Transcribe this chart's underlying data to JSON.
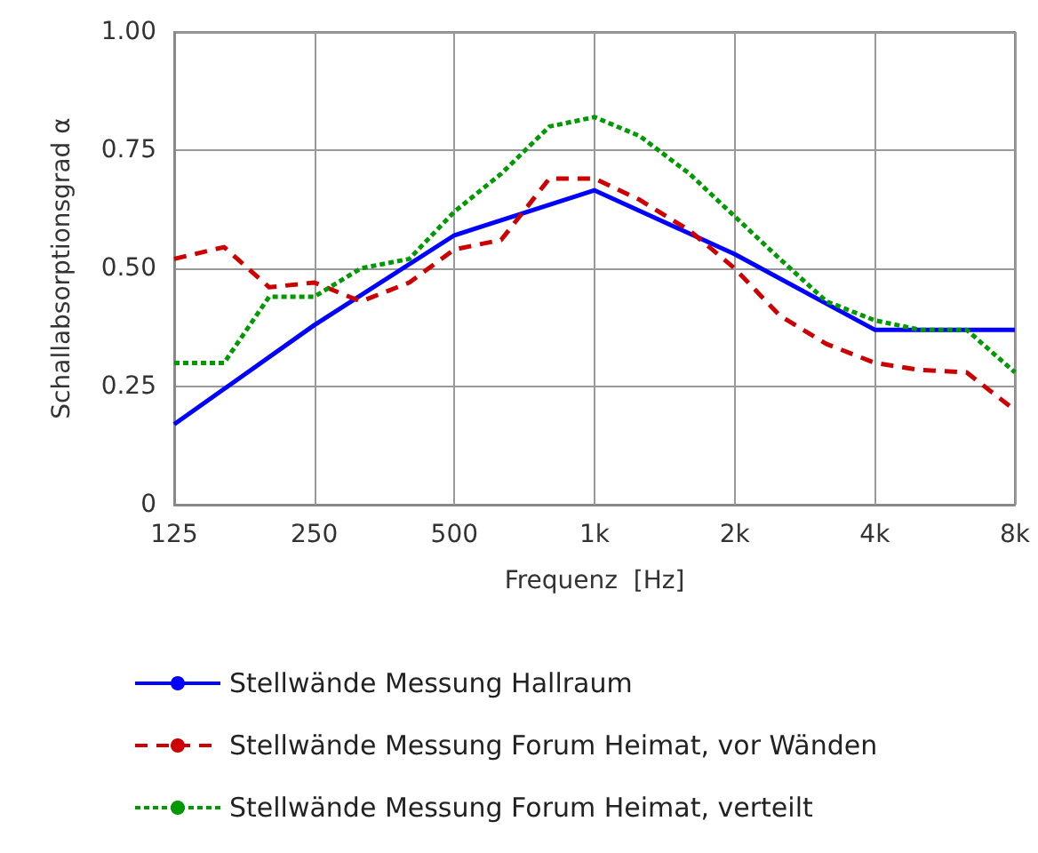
{
  "chart_data": {
    "type": "line",
    "xlabel": "Frequenz  [Hz]",
    "ylabel": "Schallabsorptionsgrad α",
    "log": "x",
    "grid": true,
    "legend": "bottom",
    "marker": "none",
    "xlim": [
      125,
      8000
    ],
    "xticks": [
      125,
      250,
      500,
      {
        "value": 1000,
        "label": "1k"
      },
      {
        "value": 2000,
        "label": "2k"
      },
      {
        "value": 4000,
        "label": "4k"
      },
      {
        "value": 8000,
        "label": "8k"
      }
    ],
    "ylim": [
      0,
      1
    ],
    "yticks": [
      0,
      {
        "value": 0.25,
        "label": "0.25"
      },
      {
        "value": 0.5,
        "label": "0.50"
      },
      {
        "value": 0.75,
        "label": "0.75"
      },
      {
        "value": 1,
        "label": "1.00"
      }
    ],
    "series": [
      {
        "name": "Stellwände Messung Hallraum",
        "color": "#0000ff",
        "line_style": "solid",
        "x": [
          125,
          250,
          500,
          1000,
          2000,
          4000,
          8000
        ],
        "values": [
          0.17,
          0.38,
          0.57,
          0.665,
          0.53,
          0.37,
          0.37
        ]
      },
      {
        "name": "Stellwände Messung Forum Heimat, vor Wänden",
        "color": "#cc0000",
        "line_style": "dashed",
        "x": [
          125,
          160,
          200,
          250,
          315,
          400,
          500,
          630,
          800,
          1000,
          1250,
          1600,
          2000,
          2500,
          3150,
          4000,
          5000,
          6300,
          8000
        ],
        "values": [
          0.52,
          0.545,
          0.46,
          0.47,
          0.43,
          0.47,
          0.54,
          0.56,
          0.69,
          0.69,
          0.645,
          0.58,
          0.5,
          0.4,
          0.34,
          0.3,
          0.285,
          0.28,
          0.2
        ]
      },
      {
        "name": "Stellwände Messung Forum Heimat, verteilt",
        "color": "#009900",
        "line_style": "dotted",
        "x": [
          125,
          160,
          200,
          250,
          315,
          400,
          500,
          630,
          800,
          1000,
          1250,
          1600,
          2000,
          2500,
          3150,
          4000,
          5000,
          6300,
          8000
        ],
        "values": [
          0.3,
          0.3,
          0.44,
          0.44,
          0.5,
          0.52,
          0.62,
          0.7,
          0.8,
          0.82,
          0.78,
          0.7,
          0.61,
          0.52,
          0.43,
          0.39,
          0.37,
          0.37,
          0.28
        ]
      }
    ]
  }
}
